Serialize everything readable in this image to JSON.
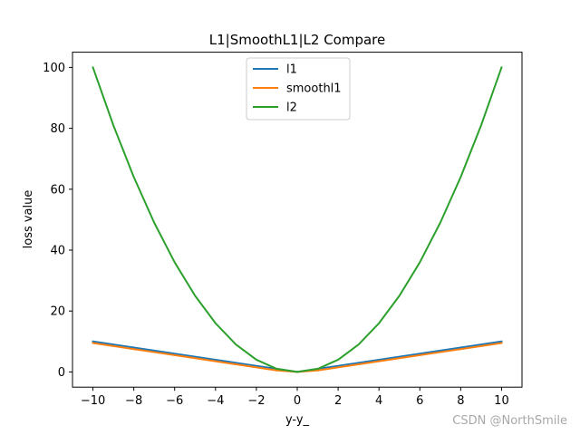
{
  "watermark": "CSDN @NorthSmile",
  "chart_data": {
    "type": "line",
    "title": "L1|SmoothL1|L2 Compare",
    "xlabel": "y-y_",
    "ylabel": "loss value",
    "xlim": [
      -11,
      11
    ],
    "ylim": [
      -5,
      105
    ],
    "xticks": [
      -10,
      -8,
      -6,
      -4,
      -2,
      0,
      2,
      4,
      6,
      8,
      10
    ],
    "xtick_labels": [
      "−10",
      "−8",
      "−6",
      "−4",
      "−2",
      "0",
      "2",
      "4",
      "6",
      "8",
      "10"
    ],
    "yticks": [
      0,
      20,
      40,
      60,
      80,
      100
    ],
    "ytick_labels": [
      "0",
      "20",
      "40",
      "60",
      "80",
      "100"
    ],
    "grid": false,
    "legend_position": "top-center",
    "x": [
      -10,
      -9,
      -8,
      -7,
      -6,
      -5,
      -4,
      -3,
      -2,
      -1,
      0,
      1,
      2,
      3,
      4,
      5,
      6,
      7,
      8,
      9,
      10
    ],
    "series": [
      {
        "name": "l1",
        "color": "#1f77b4",
        "values": [
          10,
          9,
          8,
          7,
          6,
          5,
          4,
          3,
          2,
          1,
          0,
          1,
          2,
          3,
          4,
          5,
          6,
          7,
          8,
          9,
          10
        ]
      },
      {
        "name": "smoothl1",
        "color": "#ff7f0e",
        "values": [
          9.5,
          8.5,
          7.5,
          6.5,
          5.5,
          4.5,
          3.5,
          2.5,
          1.5,
          0.5,
          0,
          0.5,
          1.5,
          2.5,
          3.5,
          4.5,
          5.5,
          6.5,
          7.5,
          8.5,
          9.5
        ]
      },
      {
        "name": "l2",
        "color": "#2ca02c",
        "values": [
          100,
          81,
          64,
          49,
          36,
          25,
          16,
          9,
          4,
          1,
          0,
          1,
          4,
          9,
          16,
          25,
          36,
          49,
          64,
          81,
          100
        ]
      }
    ]
  }
}
